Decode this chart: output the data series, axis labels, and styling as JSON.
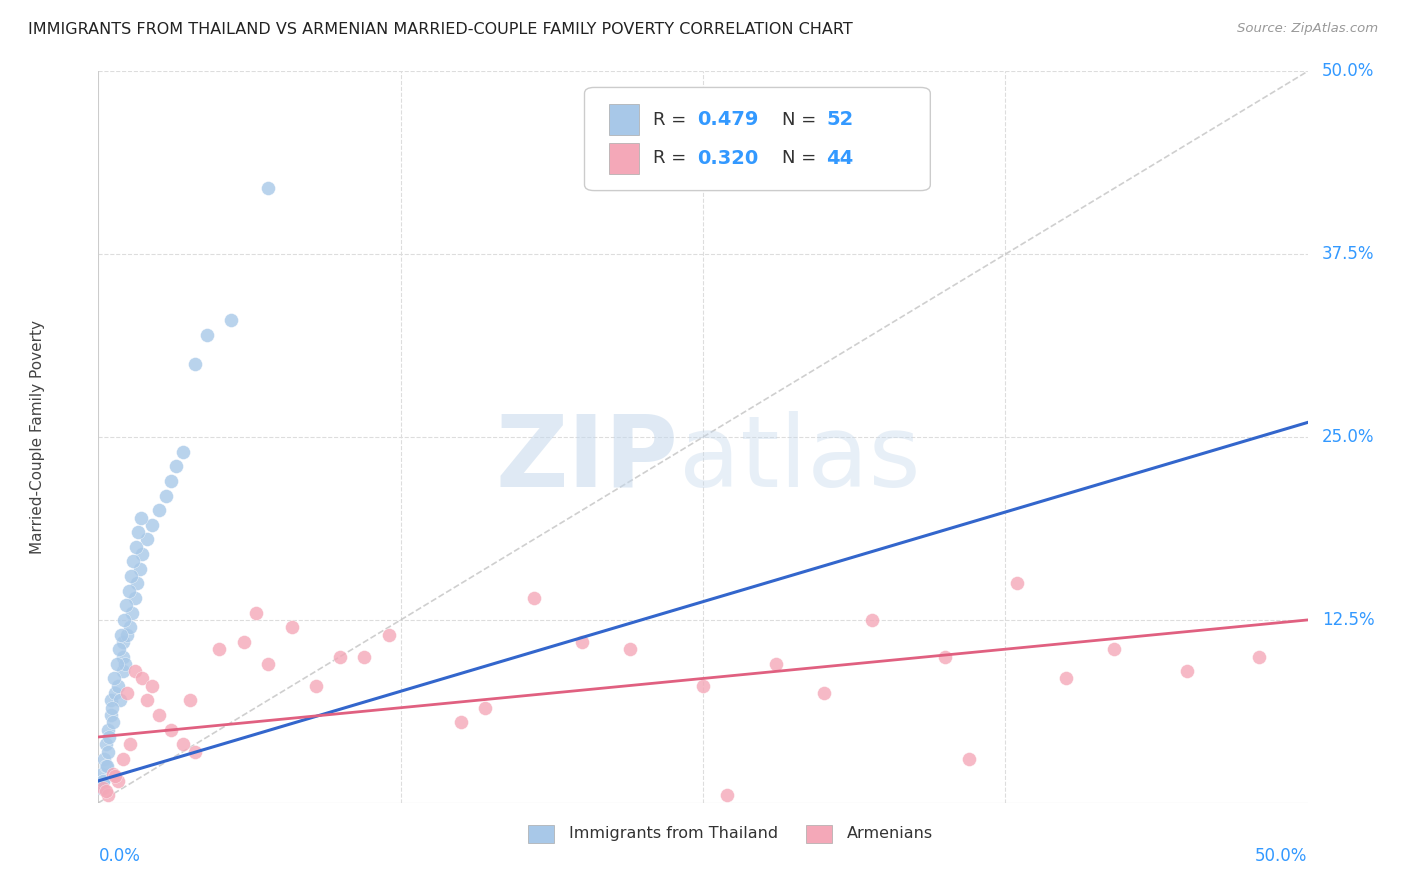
{
  "title": "IMMIGRANTS FROM THAILAND VS ARMENIAN MARRIED-COUPLE FAMILY POVERTY CORRELATION CHART",
  "source": "Source: ZipAtlas.com",
  "ylabel": "Married-Couple Family Poverty",
  "ytick_labels": [
    "12.5%",
    "25.0%",
    "37.5%",
    "50.0%"
  ],
  "ytick_values": [
    12.5,
    25.0,
    37.5,
    50.0
  ],
  "xlim": [
    0.0,
    50.0
  ],
  "ylim": [
    0.0,
    50.0
  ],
  "color_blue": "#a8c8e8",
  "color_pink": "#f4a8b8",
  "color_line_blue": "#3366cc",
  "color_line_pink": "#e06080",
  "color_diag": "#bbbbbb",
  "color_axis_label": "#3399ff",
  "thailand_x": [
    0.1,
    0.15,
    0.2,
    0.25,
    0.3,
    0.3,
    0.4,
    0.4,
    0.5,
    0.5,
    0.6,
    0.7,
    0.8,
    0.9,
    1.0,
    1.0,
    1.0,
    1.1,
    1.2,
    1.3,
    1.4,
    1.5,
    1.6,
    1.7,
    1.8,
    2.0,
    2.2,
    2.5,
    2.8,
    3.0,
    3.2,
    3.5,
    4.0,
    4.5,
    5.5,
    7.0,
    0.2,
    0.35,
    0.45,
    0.55,
    0.65,
    0.75,
    0.85,
    0.95,
    1.05,
    1.15,
    1.25,
    1.35,
    1.45,
    1.55,
    1.65,
    1.75
  ],
  "thailand_y": [
    1.0,
    2.0,
    1.5,
    3.0,
    4.0,
    2.5,
    3.5,
    5.0,
    6.0,
    7.0,
    5.5,
    7.5,
    8.0,
    7.0,
    9.0,
    10.0,
    11.0,
    9.5,
    11.5,
    12.0,
    13.0,
    14.0,
    15.0,
    16.0,
    17.0,
    18.0,
    19.0,
    20.0,
    21.0,
    22.0,
    23.0,
    24.0,
    30.0,
    32.0,
    33.0,
    42.0,
    1.5,
    2.5,
    4.5,
    6.5,
    8.5,
    9.5,
    10.5,
    11.5,
    12.5,
    13.5,
    14.5,
    15.5,
    16.5,
    17.5,
    18.5,
    19.5
  ],
  "armenian_x": [
    0.2,
    0.4,
    0.6,
    0.8,
    1.0,
    1.2,
    1.5,
    1.8,
    2.0,
    2.5,
    3.0,
    3.5,
    4.0,
    5.0,
    6.0,
    7.0,
    8.0,
    9.0,
    10.0,
    12.0,
    15.0,
    18.0,
    20.0,
    22.0,
    25.0,
    28.0,
    30.0,
    32.0,
    35.0,
    38.0,
    40.0,
    42.0,
    45.0,
    48.0,
    0.3,
    0.7,
    1.3,
    2.2,
    3.8,
    6.5,
    11.0,
    16.0,
    26.0,
    36.0
  ],
  "armenian_y": [
    1.0,
    0.5,
    2.0,
    1.5,
    3.0,
    7.5,
    9.0,
    8.5,
    7.0,
    6.0,
    5.0,
    4.0,
    3.5,
    10.5,
    11.0,
    9.5,
    12.0,
    8.0,
    10.0,
    11.5,
    5.5,
    14.0,
    11.0,
    10.5,
    8.0,
    9.5,
    7.5,
    12.5,
    10.0,
    15.0,
    8.5,
    10.5,
    9.0,
    10.0,
    0.8,
    1.8,
    4.0,
    8.0,
    7.0,
    13.0,
    10.0,
    6.5,
    0.5,
    3.0
  ],
  "thai_reg_x0": 0.0,
  "thai_reg_y0": 1.5,
  "thai_reg_x1": 50.0,
  "thai_reg_y1": 26.0,
  "arm_reg_x0": 0.0,
  "arm_reg_y0": 4.5,
  "arm_reg_x1": 50.0,
  "arm_reg_y1": 12.5
}
